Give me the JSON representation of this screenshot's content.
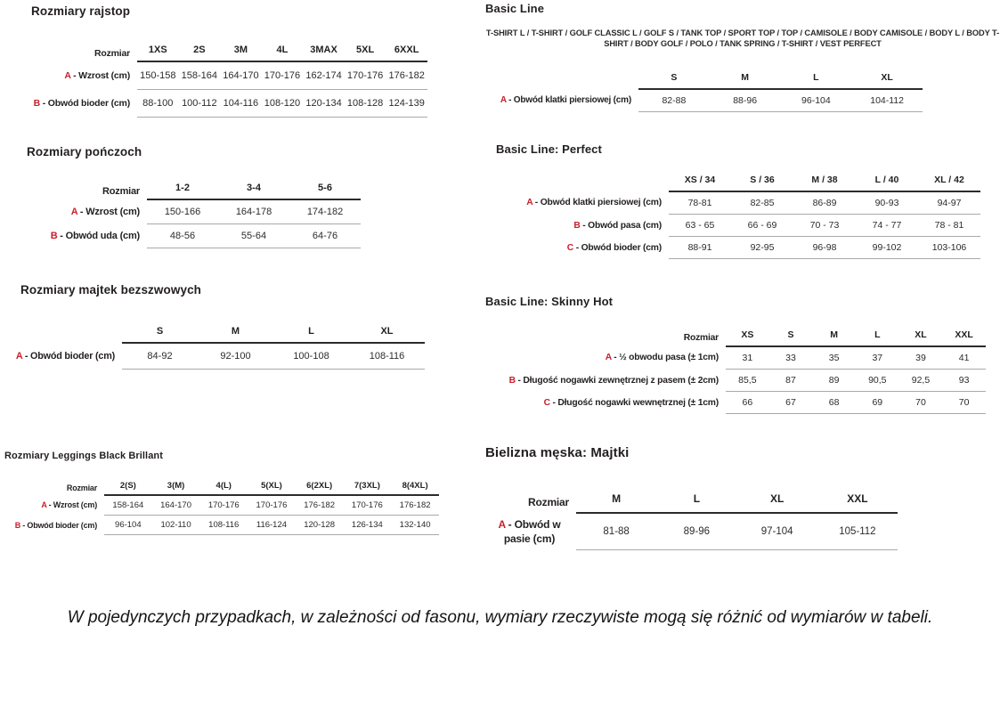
{
  "sections": {
    "rajstopy": {
      "title": "Rozmiary rajstop",
      "corner": "Rozmiar",
      "columns": [
        "1XS",
        "2S",
        "3M",
        "4L",
        "3MAX",
        "5XL",
        "6XXL"
      ],
      "rows": [
        {
          "letter": "A",
          "label": "- Wzrost (cm)",
          "values": [
            "150-158",
            "158-164",
            "164-170",
            "170-176",
            "162-174",
            "170-176",
            "176-182"
          ]
        },
        {
          "letter": "B",
          "label": "- Obwód bioder (cm)",
          "values": [
            "88-100",
            "100-112",
            "104-116",
            "108-120",
            "120-134",
            "108-128",
            "124-139"
          ]
        }
      ]
    },
    "ponczochy": {
      "title": "Rozmiary pończoch",
      "corner": "Rozmiar",
      "columns": [
        "1-2",
        "3-4",
        "5-6"
      ],
      "rows": [
        {
          "letter": "A",
          "label": "- Wzrost (cm)",
          "values": [
            "150-166",
            "164-178",
            "174-182"
          ]
        },
        {
          "letter": "B",
          "label": "- Obwód uda (cm)",
          "values": [
            "48-56",
            "55-64",
            "64-76"
          ]
        }
      ]
    },
    "majtki_bezszwowe": {
      "title": "Rozmiary majtek bezszwowych",
      "corner": "",
      "columns": [
        "S",
        "M",
        "L",
        "XL"
      ],
      "rows": [
        {
          "letter": "A",
          "label": "- Obwód bioder (cm)",
          "values": [
            "84-92",
            "92-100",
            "100-108",
            "108-116"
          ]
        }
      ]
    },
    "leggings": {
      "title": "Rozmiary Leggings Black Brillant",
      "corner": "Rozmiar",
      "columns": [
        "2(S)",
        "3(M)",
        "4(L)",
        "5(XL)",
        "6(2XL)",
        "7(3XL)",
        "8(4XL)"
      ],
      "rows": [
        {
          "letter": "A",
          "label": "- Wzrost (cm)",
          "values": [
            "158-164",
            "164-170",
            "170-176",
            "170-176",
            "176-182",
            "170-176",
            "176-182"
          ]
        },
        {
          "letter": "B",
          "label": "- Obwód bioder (cm)",
          "values": [
            "96-104",
            "102-110",
            "108-116",
            "116-124",
            "120-128",
            "126-134",
            "132-140"
          ]
        }
      ]
    },
    "basic_line": {
      "title": "Basic Line",
      "products": "T-SHIRT L / T-SHIRT / GOLF CLASSIC L / GOLF S / TANK TOP / SPORT TOP / TOP / CAMISOLE / BODY CAMISOLE / BODY L / BODY T-SHIRT / BODY GOLF / POLO / TANK SPRING / T-SHIRT / VEST PERFECT",
      "corner": "",
      "columns": [
        "S",
        "M",
        "L",
        "XL"
      ],
      "rows": [
        {
          "letter": "A",
          "label": "- Obwód klatki piersiowej (cm)",
          "values": [
            "82-88",
            "88-96",
            "96-104",
            "104-112"
          ]
        }
      ]
    },
    "basic_line_perfect": {
      "title": "Basic Line: Perfect",
      "corner": "",
      "columns": [
        "XS / 34",
        "S / 36",
        "M / 38",
        "L / 40",
        "XL / 42"
      ],
      "rows": [
        {
          "letter": "A",
          "label": "- Obwód klatki piersiowej (cm)",
          "values": [
            "78-81",
            "82-85",
            "86-89",
            "90-93",
            "94-97"
          ]
        },
        {
          "letter": "B",
          "label": "- Obwód pasa (cm)",
          "values": [
            "63 - 65",
            "66 - 69",
            "70 - 73",
            "74 - 77",
            "78 - 81"
          ]
        },
        {
          "letter": "C",
          "label": "- Obwód bioder (cm)",
          "values": [
            "88-91",
            "92-95",
            "96-98",
            "99-102",
            "103-106"
          ]
        }
      ]
    },
    "skinny_hot": {
      "title": "Basic Line: Skinny Hot",
      "corner": "Rozmiar",
      "columns": [
        "XS",
        "S",
        "M",
        "L",
        "XL",
        "XXL"
      ],
      "rows": [
        {
          "letter": "A",
          "label": "- ½ obwodu pasa (± 1cm)",
          "values": [
            "31",
            "33",
            "35",
            "37",
            "39",
            "41"
          ]
        },
        {
          "letter": "B",
          "label": "- Długość nogawki zewnętrznej z pasem (± 2cm)",
          "values": [
            "85,5",
            "87",
            "89",
            "90,5",
            "92,5",
            "93"
          ]
        },
        {
          "letter": "C",
          "label": "- Długość nogawki wewnętrznej (± 1cm)",
          "values": [
            "66",
            "67",
            "68",
            "69",
            "70",
            "70"
          ]
        }
      ]
    },
    "bielizna_meska": {
      "title": "Bielizna męska: Majtki",
      "corner": "Rozmiar",
      "columns": [
        "M",
        "L",
        "XL",
        "XXL"
      ],
      "rows": [
        {
          "letter": "A",
          "label": "- Obwód w pasie (cm)",
          "values": [
            "81-88",
            "89-96",
            "97-104",
            "105-112"
          ]
        }
      ]
    }
  },
  "footer": {
    "note": "W pojedynczych przypadkach, w zależności od fasonu, wymiary rzeczywiste mogą się różnić od wymiarów w tabeli."
  },
  "colors": {
    "accent_red": "#c8202c",
    "text": "#231f20",
    "rule_dark": "#2b2b2b",
    "rule_light": "#a9a9a9"
  }
}
